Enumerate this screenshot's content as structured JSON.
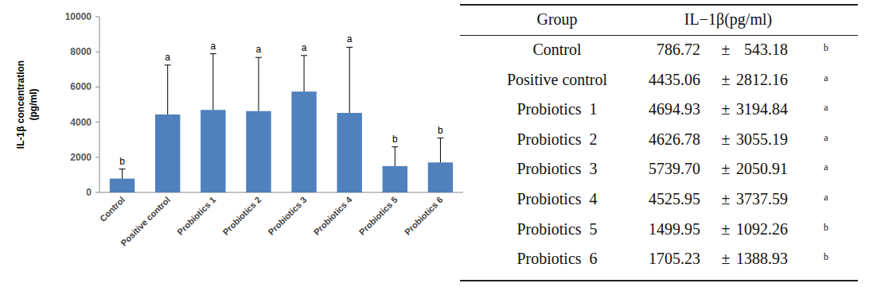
{
  "chart_data": {
    "type": "bar",
    "y_label": [
      "IL-1β concentration",
      "(pg/ml)"
    ],
    "categories": [
      "Control",
      "Positive control",
      "Probiotics 1",
      "Probiotics 2",
      "Probiotics 3",
      "Probiotics 4",
      "Probiotics 5",
      "Probiotics 6"
    ],
    "values": [
      786.72,
      4435.06,
      4694.93,
      4626.78,
      5739.7,
      4525.95,
      1499.95,
      1705.23
    ],
    "errors": [
      543.18,
      2812.16,
      3194.84,
      3055.19,
      2050.91,
      3737.59,
      1092.26,
      1388.93
    ],
    "annotations": [
      "b",
      "a",
      "a",
      "a",
      "a",
      "a",
      "b",
      "b"
    ],
    "color": "#4f81bd",
    "ylim": [
      0,
      10000
    ],
    "yticks": [
      0,
      2000,
      4000,
      6000,
      8000,
      10000
    ],
    "grid": false
  },
  "table": {
    "header": [
      "Group",
      "IL−1β(pg/ml)"
    ],
    "rows": [
      [
        "Control",
        "786.72",
        "±",
        "543.18",
        "b"
      ],
      [
        "Positive control",
        "4435.06",
        "±",
        "2812.16",
        "a"
      ],
      [
        "Probiotics  1",
        "4694.93",
        "±",
        "3194.84",
        "a"
      ],
      [
        "Probiotics  2",
        "4626.78",
        "±",
        "3055.19",
        "a"
      ],
      [
        "Probiotics  3",
        "5739.70",
        "±",
        "2050.91",
        "a"
      ],
      [
        "Probiotics  4",
        "4525.95",
        "±",
        "3737.59",
        "a"
      ],
      [
        "Probiotics  5",
        "1499.95",
        "±",
        "1092.26",
        "b"
      ],
      [
        "Probiotics  6",
        "1705.23",
        "±",
        "1388.93",
        "b"
      ]
    ]
  }
}
